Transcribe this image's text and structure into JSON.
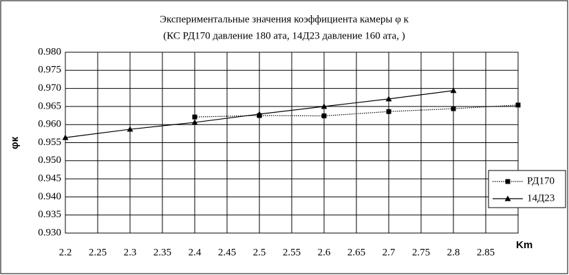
{
  "chart_data": {
    "type": "line",
    "title": [
      "Экспериментальные  значения коэффициента камеры φ к",
      "(КС РД170 давление 180 ата,  14Д23 давление 160 ата, )"
    ],
    "x_label": "Km",
    "y_label": "φк",
    "xlim": [
      2.2,
      2.9
    ],
    "xticks": [
      2.2,
      2.25,
      2.3,
      2.35,
      2.4,
      2.45,
      2.5,
      2.55,
      2.6,
      2.65,
      2.7,
      2.75,
      2.8,
      2.85
    ],
    "ylim": [
      0.93,
      0.98
    ],
    "yticks": [
      {
        "value": 0.93,
        "label": "0.930"
      },
      {
        "value": 0.935,
        "label": "0.935"
      },
      {
        "value": 0.94,
        "label": "0.940"
      },
      {
        "value": 0.945,
        "label": "0.945"
      },
      {
        "value": 0.95,
        "label": "0.950"
      },
      {
        "value": 0.955,
        "label": "0.955"
      },
      {
        "value": 0.96,
        "label": "0.960"
      },
      {
        "value": 0.965,
        "label": "0.965"
      },
      {
        "value": 0.97,
        "label": "0.970"
      },
      {
        "value": 0.975,
        "label": "0.975"
      },
      {
        "value": 0.98,
        "label": "0.980"
      }
    ],
    "grid": true,
    "series": [
      {
        "name": "РД170",
        "color": "#000000",
        "marker": "square",
        "dash": "dotted",
        "x": [
          2.4,
          2.5,
          2.6,
          2.7,
          2.8,
          2.9
        ],
        "values": [
          0.9621,
          0.9625,
          0.9624,
          0.9636,
          0.9644,
          0.9654
        ]
      },
      {
        "name": "14Д23",
        "color": "#000000",
        "marker": "triangle",
        "dash": "solid",
        "x": [
          2.2,
          2.3,
          2.4,
          2.5,
          2.6,
          2.7,
          2.8
        ],
        "values": [
          0.9564,
          0.9587,
          0.9606,
          0.9629,
          0.965,
          0.9671,
          0.9694
        ]
      }
    ]
  }
}
